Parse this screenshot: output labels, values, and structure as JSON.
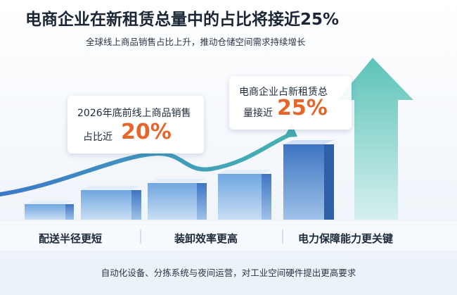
{
  "header": {
    "title": "电商企业在新租赁总量中的占比将接近25%",
    "subtitle": "全球线上商品销售占比上升，推动仓储空间需求持续增长"
  },
  "callouts": [
    {
      "text": "2026年底前线上商品销售",
      "prefix": "占比近",
      "highlight": "20%"
    },
    {
      "text": "电商企业占新租赁总",
      "prefix": "量接近",
      "highlight": "25%"
    }
  ],
  "features": [
    "配送半径更短",
    "装卸效率更高",
    "电力保障能力更关键"
  ],
  "footer": "自动化设备、分拣系统与夜间运营，对工业空间硬件提出更高要求"
}
